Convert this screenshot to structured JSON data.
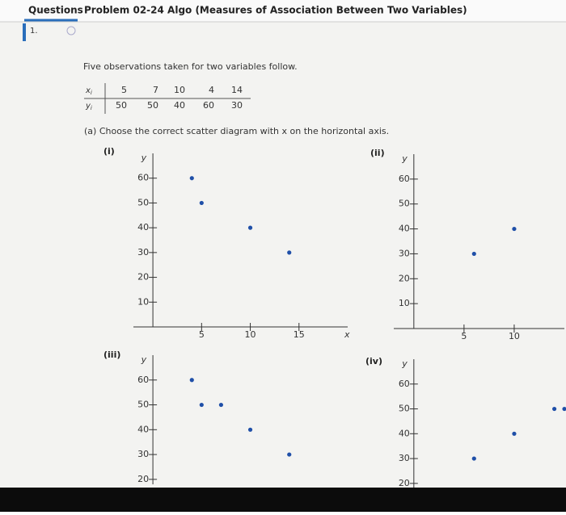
{
  "header": {
    "tab": "Questions",
    "title": "Problem 02-24 Algo (Measures of Association Between Two Variables)"
  },
  "question_number": "1.",
  "intro": "Five observations taken for two variables follow.",
  "table": {
    "rows": [
      {
        "symbol": "x",
        "sub": "i",
        "values": [
          5,
          7,
          10,
          4,
          14
        ]
      },
      {
        "symbol": "y",
        "sub": "i",
        "values": [
          50,
          50,
          40,
          60,
          30
        ]
      }
    ]
  },
  "part_a": "(a) Choose the correct scatter diagram with x on the horizontal axis.",
  "chart_data": [
    {
      "type": "scatter",
      "label": "(i)",
      "x_label": "x",
      "y_label": "y",
      "color": "#1f4fa8",
      "x": [
        4,
        5,
        10,
        14
      ],
      "y": [
        60,
        50,
        40,
        30
      ],
      "xlim": [
        -2,
        20
      ],
      "ylim": [
        0,
        70
      ],
      "xticks": [
        5,
        10,
        15
      ],
      "yticks": [
        10,
        20,
        30,
        40,
        50,
        60
      ]
    },
    {
      "type": "scatter",
      "label": "(ii)",
      "y_label": "y",
      "color": "#1f4fa8",
      "x": [
        6,
        10
      ],
      "y": [
        30,
        40
      ],
      "xlim": [
        -2,
        15
      ],
      "ylim": [
        0,
        70
      ],
      "xticks": [
        5,
        10
      ],
      "yticks": [
        10,
        20,
        30,
        40,
        50,
        60
      ]
    },
    {
      "type": "scatter",
      "label": "(iii)",
      "y_label": "y",
      "color": "#1f4fa8",
      "x": [
        4,
        5,
        7,
        10,
        14
      ],
      "y": [
        60,
        50,
        50,
        40,
        30
      ],
      "xlim": [
        -2,
        20
      ],
      "ylim": [
        18,
        70
      ],
      "yticks": [
        20,
        30,
        40,
        50,
        60
      ]
    },
    {
      "type": "scatter",
      "label": "(iv)",
      "y_label": "y",
      "color": "#1f4fa8",
      "x": [
        6,
        10,
        14,
        15
      ],
      "y": [
        30,
        40,
        50,
        50
      ],
      "xlim": [
        -2,
        15
      ],
      "ylim": [
        18,
        70
      ],
      "yticks": [
        20,
        30,
        40,
        50,
        60
      ]
    }
  ]
}
